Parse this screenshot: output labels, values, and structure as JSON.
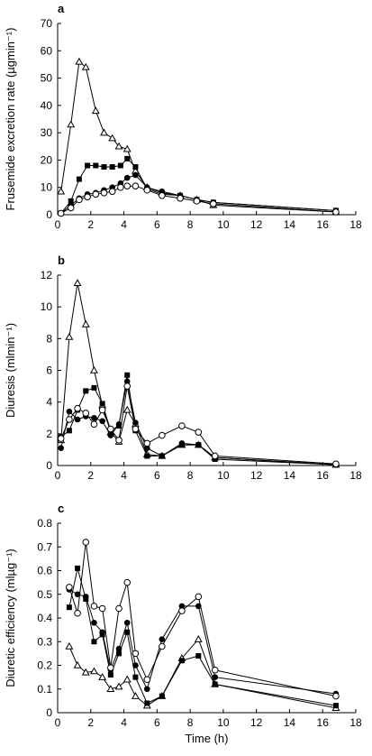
{
  "chart_data": [
    {
      "type": "line",
      "panel_label": "a",
      "ylabel": "Frusemide excretion rate (µgmin⁻¹)",
      "xlabel": "",
      "xlim": [
        0,
        18
      ],
      "ylim": [
        0,
        70
      ],
      "xticks": [
        0,
        2,
        4,
        6,
        8,
        10,
        12,
        14,
        16,
        18
      ],
      "yticks": [
        0,
        10,
        20,
        30,
        40,
        50,
        60,
        70
      ],
      "grid": false,
      "series": [
        {
          "marker": "triangle-open",
          "points": [
            [
              0.2,
              8.5
            ],
            [
              0.8,
              33
            ],
            [
              1.3,
              56
            ],
            [
              1.7,
              54
            ],
            [
              2.3,
              38
            ],
            [
              2.8,
              30
            ],
            [
              3.3,
              28
            ],
            [
              3.7,
              25
            ],
            [
              4.2,
              24
            ],
            [
              4.7,
              16
            ],
            [
              5.4,
              10
            ],
            [
              6.3,
              8
            ],
            [
              7.4,
              7
            ],
            [
              8.4,
              5.5
            ],
            [
              9.4,
              3.5
            ],
            [
              16.8,
              1
            ]
          ]
        },
        {
          "marker": "square-filled",
          "points": [
            [
              0.2,
              0.5
            ],
            [
              0.8,
              5
            ],
            [
              1.3,
              13
            ],
            [
              1.8,
              18
            ],
            [
              2.3,
              18
            ],
            [
              2.8,
              17.5
            ],
            [
              3.3,
              17.5
            ],
            [
              3.8,
              18
            ],
            [
              4.2,
              20.5
            ],
            [
              4.7,
              17.5
            ],
            [
              5.4,
              9.5
            ],
            [
              6.3,
              7.5
            ],
            [
              7.4,
              7
            ],
            [
              8.4,
              5.5
            ],
            [
              9.4,
              4.5
            ],
            [
              16.8,
              1.5
            ]
          ]
        },
        {
          "marker": "circle-filled",
          "points": [
            [
              0.2,
              0.5
            ],
            [
              0.8,
              3.5
            ],
            [
              1.3,
              6
            ],
            [
              1.8,
              7.5
            ],
            [
              2.3,
              8
            ],
            [
              2.8,
              9
            ],
            [
              3.3,
              10
            ],
            [
              3.8,
              11.5
            ],
            [
              4.2,
              13.5
            ],
            [
              4.7,
              14.5
            ],
            [
              5.4,
              10
            ],
            [
              6.3,
              8.5
            ],
            [
              7.4,
              7
            ],
            [
              8.4,
              5.5
            ],
            [
              9.4,
              4.5
            ],
            [
              16.8,
              1.5
            ]
          ]
        },
        {
          "marker": "circle-open",
          "points": [
            [
              0.2,
              0.5
            ],
            [
              0.8,
              2.5
            ],
            [
              1.3,
              5.5
            ],
            [
              1.8,
              6.5
            ],
            [
              2.3,
              7.5
            ],
            [
              2.8,
              8
            ],
            [
              3.3,
              8.5
            ],
            [
              3.8,
              10
            ],
            [
              4.2,
              10.5
            ],
            [
              4.7,
              10.5
            ],
            [
              5.4,
              9
            ],
            [
              6.3,
              7
            ],
            [
              7.4,
              6
            ],
            [
              8.4,
              5
            ],
            [
              9.4,
              4
            ],
            [
              16.8,
              1
            ]
          ]
        }
      ]
    },
    {
      "type": "line",
      "panel_label": "b",
      "ylabel": "Diuresis (mlmin⁻¹)",
      "xlabel": "",
      "xlim": [
        0,
        18
      ],
      "ylim": [
        0,
        12
      ],
      "xticks": [
        0,
        2,
        4,
        6,
        8,
        10,
        12,
        14,
        16,
        18
      ],
      "yticks": [
        0,
        2,
        4,
        6,
        8,
        10,
        12
      ],
      "grid": false,
      "series": [
        {
          "marker": "triangle-open",
          "points": [
            [
              0.2,
              1.6
            ],
            [
              0.7,
              8.1
            ],
            [
              1.2,
              11.5
            ],
            [
              1.7,
              8.9
            ],
            [
              2.2,
              6.0
            ],
            [
              2.7,
              3.8
            ],
            [
              3.2,
              2.1
            ],
            [
              3.7,
              1.5
            ],
            [
              4.2,
              3.5
            ],
            [
              4.7,
              2.6
            ],
            [
              5.4,
              0.7
            ],
            [
              6.3,
              0.6
            ],
            [
              7.5,
              1.3
            ],
            [
              8.5,
              1.3
            ],
            [
              9.5,
              0.5
            ],
            [
              16.8,
              0.05
            ]
          ]
        },
        {
          "marker": "square-filled",
          "points": [
            [
              0.2,
              1.8
            ],
            [
              0.7,
              2.2
            ],
            [
              1.2,
              3.5
            ],
            [
              1.7,
              4.7
            ],
            [
              2.2,
              4.9
            ],
            [
              2.7,
              3.9
            ],
            [
              3.2,
              2.2
            ],
            [
              3.7,
              2.5
            ],
            [
              4.2,
              5.7
            ],
            [
              4.7,
              2.2
            ],
            [
              5.4,
              0.6
            ],
            [
              6.3,
              0.6
            ],
            [
              7.5,
              1.3
            ],
            [
              8.5,
              1.3
            ],
            [
              9.5,
              0.4
            ],
            [
              16.8,
              0.05
            ]
          ]
        },
        {
          "marker": "circle-filled",
          "points": [
            [
              0.2,
              1.1
            ],
            [
              0.7,
              3.4
            ],
            [
              1.2,
              2.9
            ],
            [
              1.7,
              3.1
            ],
            [
              2.2,
              3.0
            ],
            [
              2.7,
              2.8
            ],
            [
              3.2,
              1.9
            ],
            [
              3.7,
              2.6
            ],
            [
              4.2,
              5.3
            ],
            [
              4.7,
              2.7
            ],
            [
              5.4,
              1.1
            ],
            [
              6.3,
              0.6
            ],
            [
              7.5,
              1.4
            ],
            [
              8.5,
              1.3
            ],
            [
              9.5,
              0.5
            ],
            [
              16.8,
              0.05
            ]
          ]
        },
        {
          "marker": "circle-open",
          "points": [
            [
              0.2,
              1.7
            ],
            [
              0.7,
              2.9
            ],
            [
              1.2,
              3.6
            ],
            [
              1.7,
              3.3
            ],
            [
              2.2,
              2.6
            ],
            [
              2.7,
              3.5
            ],
            [
              3.2,
              2.3
            ],
            [
              3.7,
              1.6
            ],
            [
              4.2,
              5.0
            ],
            [
              4.7,
              2.3
            ],
            [
              5.4,
              1.4
            ],
            [
              6.3,
              1.9
            ],
            [
              7.5,
              2.5
            ],
            [
              8.5,
              2.1
            ],
            [
              9.5,
              0.6
            ],
            [
              16.8,
              0.1
            ]
          ]
        }
      ]
    },
    {
      "type": "line",
      "panel_label": "c",
      "ylabel": "Diuretic efficiency (mlµg⁻¹)",
      "xlabel": "Time (h)",
      "xlim": [
        0,
        18
      ],
      "ylim": [
        0,
        0.8
      ],
      "xticks": [
        0,
        2,
        4,
        6,
        8,
        10,
        12,
        14,
        16,
        18
      ],
      "yticks": [
        0,
        0.1,
        0.2,
        0.3,
        0.4,
        0.5,
        0.6,
        0.7,
        0.8
      ],
      "grid": false,
      "series": [
        {
          "marker": "triangle-open",
          "points": [
            [
              0.7,
              0.28
            ],
            [
              1.2,
              0.2
            ],
            [
              1.7,
              0.17
            ],
            [
              2.2,
              0.175
            ],
            [
              2.7,
              0.15
            ],
            [
              3.2,
              0.1
            ],
            [
              3.7,
              0.11
            ],
            [
              4.2,
              0.14
            ],
            [
              4.7,
              0.07
            ],
            [
              5.4,
              0.03
            ],
            [
              6.3,
              0.07
            ],
            [
              7.5,
              0.23
            ],
            [
              8.5,
              0.31
            ],
            [
              9.5,
              0.12
            ],
            [
              16.8,
              0.02
            ]
          ]
        },
        {
          "marker": "square-filled",
          "points": [
            [
              0.7,
              0.445
            ],
            [
              1.2,
              0.61
            ],
            [
              1.7,
              0.48
            ],
            [
              2.2,
              0.3
            ],
            [
              2.7,
              0.33
            ],
            [
              3.2,
              0.16
            ],
            [
              3.7,
              0.25
            ],
            [
              4.2,
              0.34
            ],
            [
              4.7,
              0.15
            ],
            [
              5.4,
              0.04
            ],
            [
              6.3,
              0.07
            ],
            [
              7.5,
              0.22
            ],
            [
              8.5,
              0.24
            ],
            [
              9.5,
              0.12
            ],
            [
              16.8,
              0.03
            ]
          ]
        },
        {
          "marker": "circle-filled",
          "points": [
            [
              0.7,
              0.52
            ],
            [
              1.2,
              0.5
            ],
            [
              1.7,
              0.49
            ],
            [
              2.2,
              0.38
            ],
            [
              2.7,
              0.34
            ],
            [
              3.2,
              0.18
            ],
            [
              3.7,
              0.27
            ],
            [
              4.2,
              0.38
            ],
            [
              4.7,
              0.2
            ],
            [
              5.4,
              0.1
            ],
            [
              6.3,
              0.31
            ],
            [
              7.5,
              0.45
            ],
            [
              8.5,
              0.45
            ],
            [
              9.5,
              0.15
            ],
            [
              16.8,
              0.08
            ]
          ]
        },
        {
          "marker": "circle-open",
          "points": [
            [
              0.7,
              0.53
            ],
            [
              1.2,
              0.42
            ],
            [
              1.7,
              0.72
            ],
            [
              2.2,
              0.45
            ],
            [
              2.7,
              0.44
            ],
            [
              3.2,
              0.19
            ],
            [
              3.7,
              0.44
            ],
            [
              4.2,
              0.55
            ],
            [
              4.7,
              0.25
            ],
            [
              5.4,
              0.14
            ],
            [
              6.3,
              0.28
            ],
            [
              7.5,
              0.43
            ],
            [
              8.5,
              0.49
            ],
            [
              9.5,
              0.18
            ],
            [
              16.8,
              0.07
            ]
          ]
        }
      ]
    }
  ]
}
